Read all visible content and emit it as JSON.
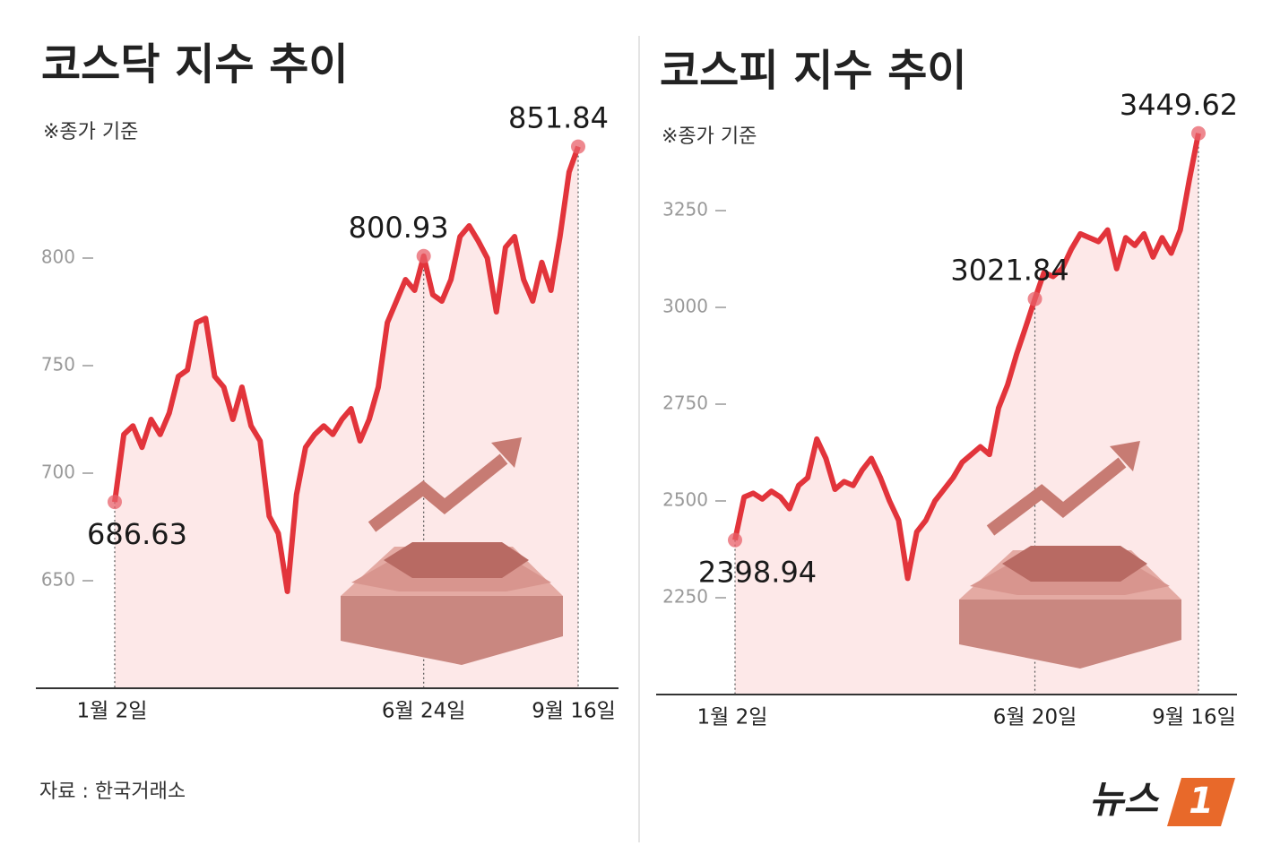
{
  "chart_data": [
    {
      "type": "line",
      "title": "코스닥 지수 추이",
      "subtitle": "※종가 기준",
      "color": "#e2343b",
      "categories": [
        "1월 2일",
        null,
        null,
        null,
        null,
        null,
        null,
        null,
        null,
        null,
        null,
        null,
        null,
        null,
        null,
        null,
        null,
        null,
        null,
        null,
        null,
        null,
        null,
        null,
        null,
        null,
        null,
        null,
        null,
        null,
        null,
        null,
        null,
        null,
        "6월 24일",
        null,
        null,
        null,
        null,
        null,
        null,
        null,
        null,
        null,
        null,
        null,
        null,
        null,
        null,
        null,
        null,
        "9월 16일"
      ],
      "values": [
        686.63,
        718,
        722,
        712,
        725,
        718,
        728,
        745,
        748,
        770,
        772,
        745,
        740,
        725,
        740,
        722,
        715,
        680,
        672,
        645,
        690,
        712,
        718,
        722,
        718,
        725,
        730,
        715,
        725,
        740,
        770,
        780,
        790,
        785,
        800.93,
        783,
        780,
        790,
        810,
        815,
        808,
        800,
        775,
        805,
        810,
        790,
        780,
        798,
        785,
        810,
        840,
        851.84
      ],
      "ylim": [
        600,
        870
      ],
      "yticks": [
        650,
        700,
        750,
        800
      ]
    },
    {
      "type": "line",
      "title": "코스피 지수 추이",
      "subtitle": "※종가 기준",
      "color": "#e2343b",
      "categories": [
        "1월 2일",
        null,
        null,
        null,
        null,
        null,
        null,
        null,
        null,
        null,
        null,
        null,
        null,
        null,
        null,
        null,
        null,
        null,
        null,
        null,
        null,
        null,
        null,
        null,
        null,
        null,
        null,
        null,
        null,
        null,
        null,
        null,
        null,
        "6월 20일",
        null,
        null,
        null,
        null,
        null,
        null,
        null,
        null,
        null,
        null,
        null,
        null,
        null,
        null,
        null,
        null,
        null,
        "9월 16일"
      ],
      "values": [
        2398.94,
        2510,
        2520,
        2505,
        2525,
        2510,
        2480,
        2540,
        2560,
        2660,
        2610,
        2530,
        2550,
        2540,
        2580,
        2610,
        2560,
        2500,
        2450,
        2300,
        2420,
        2450,
        2500,
        2530,
        2560,
        2600,
        2620,
        2640,
        2620,
        2740,
        2800,
        2880,
        2950,
        3021.84,
        3090,
        3080,
        3100,
        3150,
        3190,
        3180,
        3170,
        3200,
        3100,
        3180,
        3160,
        3190,
        3130,
        3180,
        3140,
        3200,
        3330,
        3449.62
      ],
      "ylim": [
        2000,
        3500
      ],
      "yticks": [
        2250,
        2500,
        2750,
        3000,
        3250
      ]
    }
  ],
  "source": "자료 : 한국거래소",
  "logo": {
    "name": "뉴스",
    "mark": "1"
  }
}
